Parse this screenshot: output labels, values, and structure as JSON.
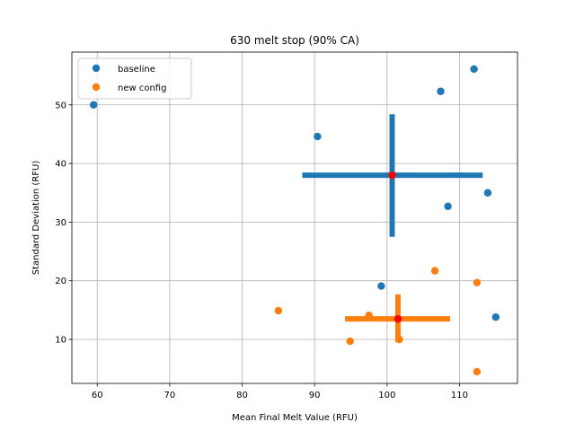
{
  "chart_data": {
    "type": "scatter",
    "title": "630 melt stop (90% CA)",
    "xlabel": "Mean Final Melt Value (RFU)",
    "ylabel": "Standard Deviation (RFU)",
    "xlim": [
      56.5,
      118.0
    ],
    "ylim": [
      2.5,
      59.0
    ],
    "xticks": [
      60,
      70,
      80,
      90,
      100,
      110
    ],
    "yticks": [
      10,
      20,
      30,
      40,
      50
    ],
    "grid": true,
    "legend_position": "top-left",
    "series": [
      {
        "name": "baseline",
        "color": "#1f77b4",
        "points": [
          {
            "x": 59.5,
            "y": 50.0
          },
          {
            "x": 90.4,
            "y": 44.6
          },
          {
            "x": 107.4,
            "y": 52.3
          },
          {
            "x": 112.0,
            "y": 56.1
          },
          {
            "x": 108.4,
            "y": 32.7
          },
          {
            "x": 113.9,
            "y": 35.0
          },
          {
            "x": 99.2,
            "y": 19.1
          },
          {
            "x": 115.0,
            "y": 13.8
          }
        ],
        "center": {
          "x": 100.7,
          "y": 38.0
        },
        "x_interval": [
          88.3,
          113.2
        ],
        "y_interval": [
          27.5,
          48.4
        ]
      },
      {
        "name": "new config",
        "color": "#ff7f0e",
        "points": [
          {
            "x": 85.0,
            "y": 14.9
          },
          {
            "x": 97.5,
            "y": 14.1
          },
          {
            "x": 94.9,
            "y": 9.7
          },
          {
            "x": 101.7,
            "y": 10.0
          },
          {
            "x": 106.6,
            "y": 21.7
          },
          {
            "x": 112.4,
            "y": 19.7
          },
          {
            "x": 112.4,
            "y": 4.5
          }
        ],
        "center": {
          "x": 101.5,
          "y": 13.5
        },
        "x_interval": [
          94.2,
          108.7
        ],
        "y_interval": [
          9.5,
          17.7
        ]
      }
    ],
    "center_marker_color": "#ff0000"
  }
}
